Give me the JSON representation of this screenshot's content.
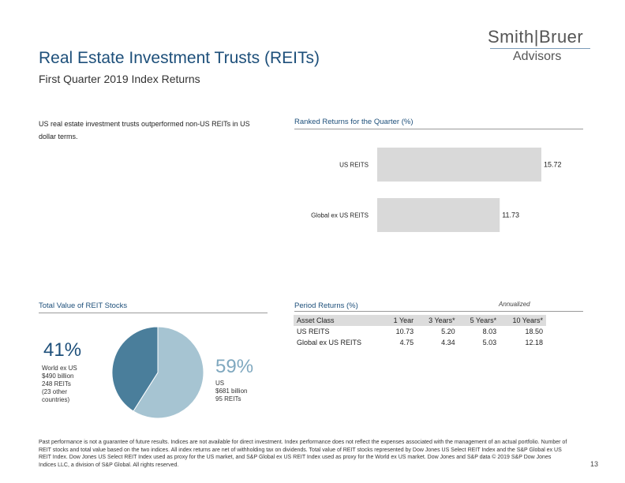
{
  "header": {
    "title": "Real Estate Investment Trusts (REITs)",
    "subtitle": "First Quarter 2019 Index Returns"
  },
  "logo": {
    "line1": "Smith|Bruer",
    "line2": "Advisors"
  },
  "intro_text": "US real estate investment trusts outperformed non-US REITs in US dollar terms.",
  "ranked": {
    "label": "Ranked Returns for the Quarter (%)"
  },
  "stocks": {
    "label": "Total Value of REIT Stocks"
  },
  "period": {
    "label": "Period Returns (%)",
    "annualized_note": "Annualized",
    "columns": [
      "Asset Class",
      "1 Year",
      "3 Years*",
      "5 Years*",
      "10 Years*"
    ],
    "rows": [
      [
        "US REITS",
        "10.73",
        "5.20",
        "8.03",
        "18.50"
      ],
      [
        "Global ex US REITS",
        "4.75",
        "4.34",
        "5.03",
        "12.18"
      ]
    ]
  },
  "pie_text": {
    "left_pct": "41%",
    "left_desc": "World ex US\n$490 billion\n248 REITs\n(23 other\ncountries)",
    "right_pct": "59%",
    "right_desc": "US\n$681 billion\n95 REITs"
  },
  "footer_text": "Past performance is not a guarantee of future results. Indices are not available for direct investment. Index performance does not reflect the expenses associated with the management of an actual portfolio. Number of REIT stocks and total value based on the two indices. All index returns are net of withholding tax on dividends. Total value of REIT stocks represented by Dow Jones US Select REIT Index and the S&P Global ex US REIT Index. Dow Jones US Select REIT Index used as proxy for the US market, and S&P Global ex US REIT Index used as proxy for the World ex US market. Dow Jones and S&P data © 2019 S&P Dow Jones Indices LLC, a division of S&P Global. All rights reserved.",
  "page_number": "13",
  "colors": {
    "title_blue": "#1d4f7a",
    "bar_gray": "#d9d9d9",
    "pie_us": "#a6c4d2",
    "pie_world": "#4a7e9b"
  },
  "chart_data": [
    {
      "type": "bar",
      "orientation": "horizontal",
      "title": "Ranked Returns for the Quarter (%)",
      "categories": [
        "US REITS",
        "Global ex US REITS"
      ],
      "values": [
        15.72,
        11.73
      ],
      "value_labels": [
        "15.72",
        "11.73"
      ],
      "xlim": [
        0,
        15.72
      ]
    },
    {
      "type": "pie",
      "title": "Total Value of REIT Stocks",
      "labels": [
        "US",
        "World ex US"
      ],
      "values": [
        59,
        41
      ],
      "units": "%"
    }
  ]
}
